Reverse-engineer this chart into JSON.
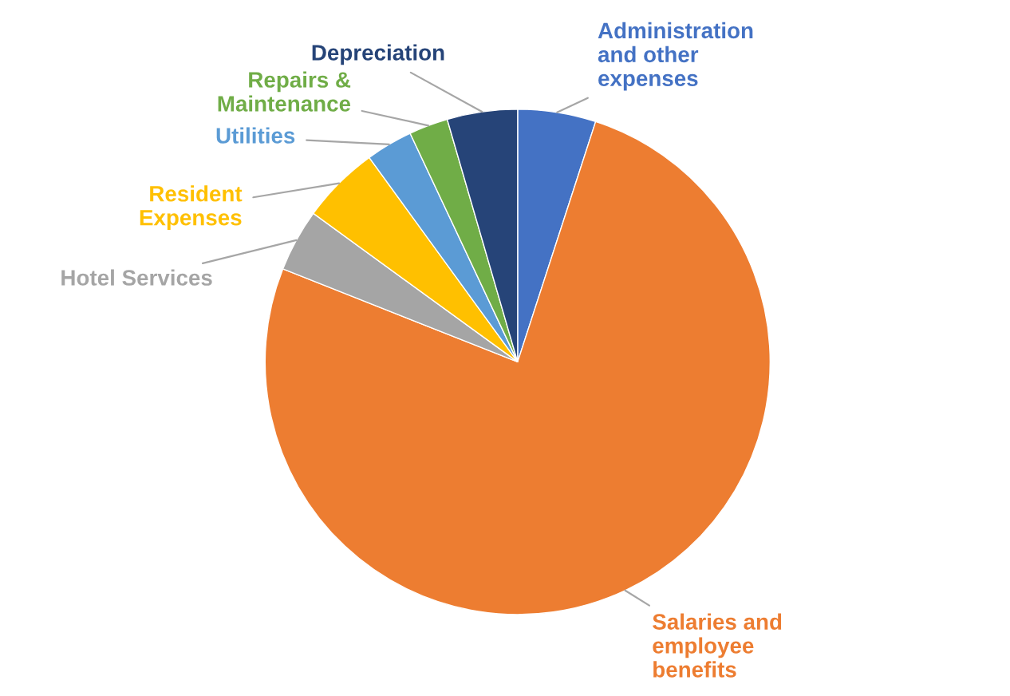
{
  "chart_data": {
    "type": "pie",
    "categories": [
      "Administration\nand other\nexpenses",
      "Salaries and\nemployee\nbenefits",
      "Hotel Services",
      "Resident\nExpenses",
      "Utilities",
      "Repairs &\nMaintenance",
      "Depreciation"
    ],
    "values": [
      5,
      76,
      4,
      5,
      3,
      2.5,
      4.5
    ],
    "colors": [
      "#4472c4",
      "#ed7d31",
      "#a5a5a5",
      "#ffc000",
      "#5b9bd5",
      "#70ad47",
      "#264478"
    ],
    "legend": false
  }
}
